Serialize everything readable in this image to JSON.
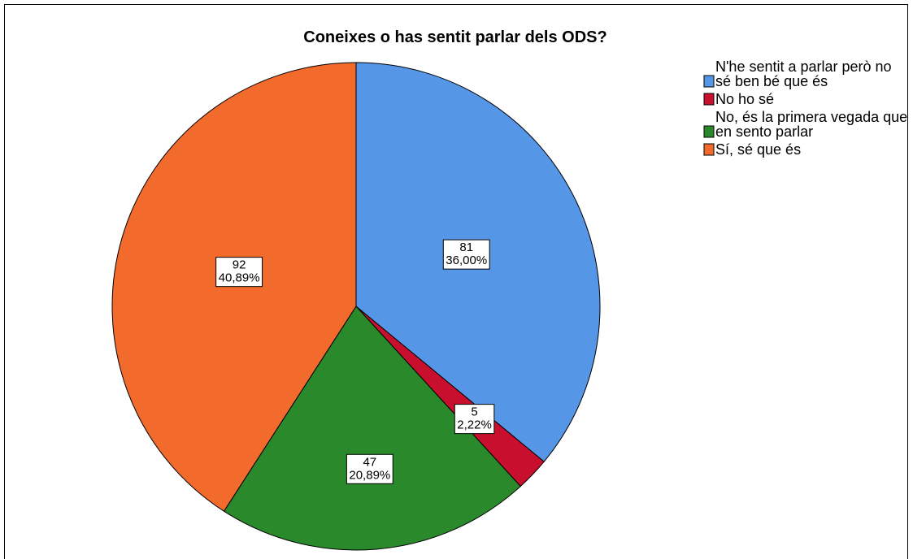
{
  "chart_data": {
    "type": "pie",
    "title": "Coneixes o has sentit parlar dels ODS?",
    "categories": [
      "N'he sentit a parlar però no sé ben bé que és",
      "No ho sé",
      "No, és la primera vegada que en sento parlar",
      "Sí, sé que és"
    ],
    "values": [
      81,
      5,
      47,
      92
    ],
    "percentages": [
      36,
      2.22,
      20.89,
      40.89
    ],
    "percentage_labels": [
      "36,00%",
      "2,22%",
      "20,89%",
      "40,89%"
    ],
    "colors": [
      "#5596e6",
      "#c8102e",
      "#2a8a2b",
      "#f26b2c"
    ],
    "legend": "right"
  }
}
